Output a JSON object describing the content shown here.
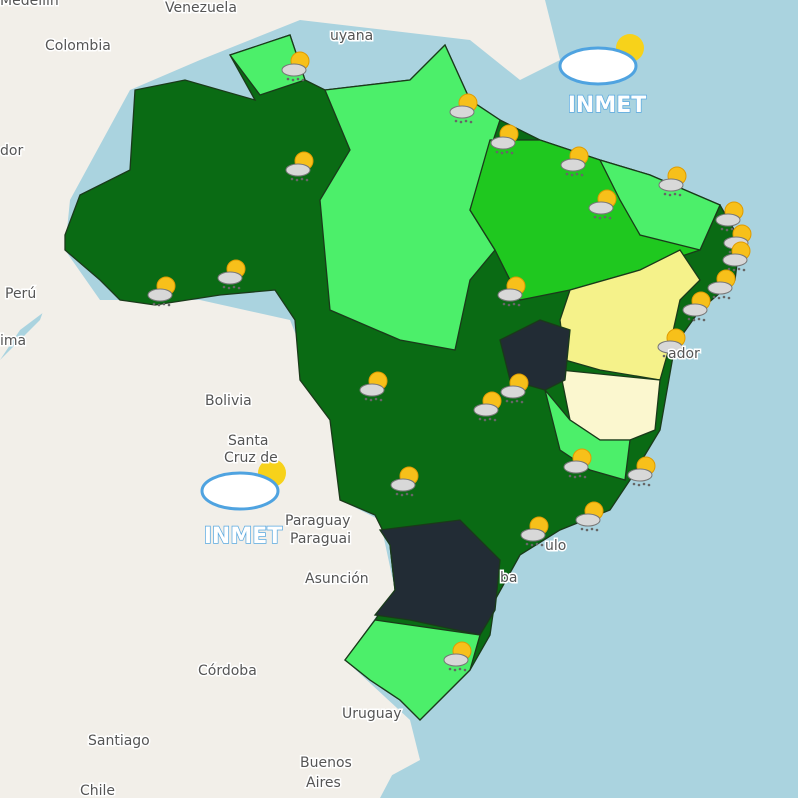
{
  "map": {
    "labels": [
      "Medellín",
      "Venezuela",
      "Colombia",
      "uyana",
      "dor",
      "Perú",
      "ima",
      "Bolivia",
      "Santa",
      "Cruz de",
      "Paraguay",
      "Paraguai",
      "Asunción",
      "Córdoba",
      "Uruguay",
      "Santiago",
      "Buenos",
      "Aires",
      "Chile",
      "ador",
      "ulo",
      "ba"
    ],
    "logos": [
      "INMET",
      "INMET"
    ]
  }
}
